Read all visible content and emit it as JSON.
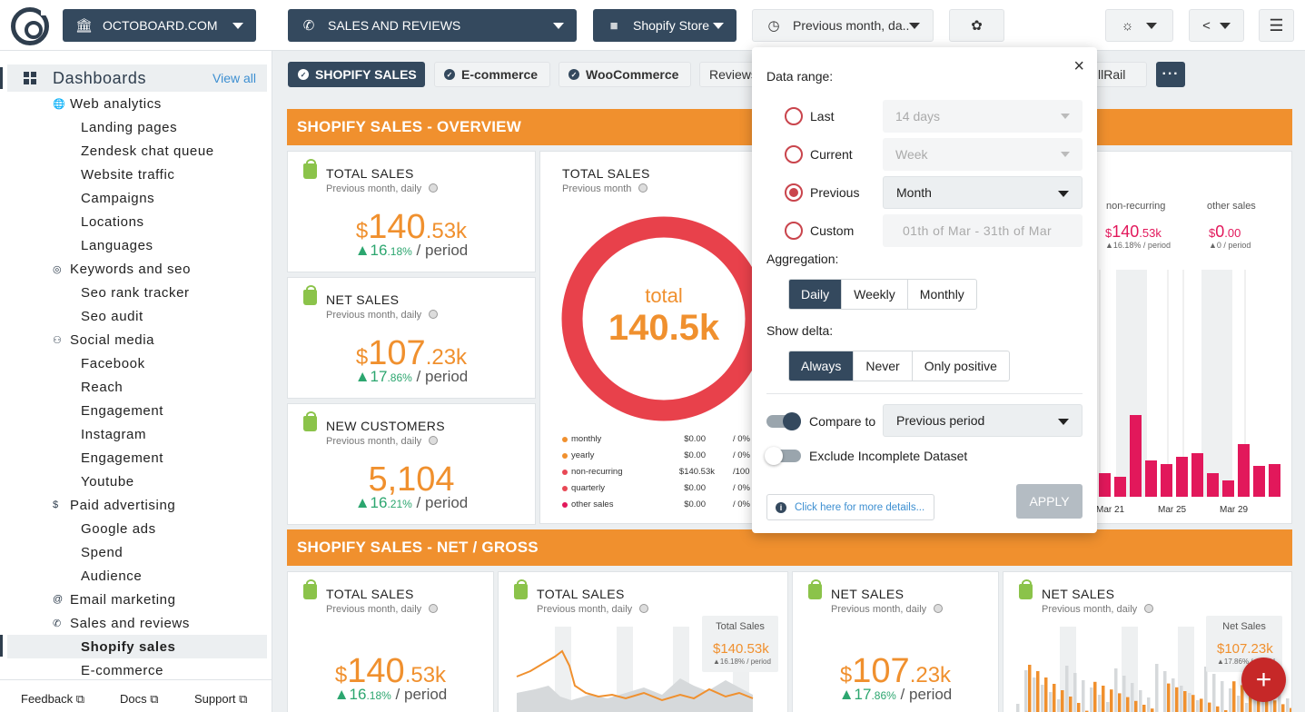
{
  "topbar": {
    "org_label": "OCTOBOARD.COM",
    "board_label": "SALES AND REVIEWS",
    "source_label": "Shopify Store",
    "period_label": "Previous month, da..."
  },
  "sidebar": {
    "header": "Dashboards",
    "view_all": "View all",
    "items": [
      {
        "label": "Web analytics",
        "level": 1,
        "icon": "globe-icon"
      },
      {
        "label": "Landing pages",
        "level": 2
      },
      {
        "label": "Zendesk chat queue",
        "level": 2
      },
      {
        "label": "Website traffic",
        "level": 2
      },
      {
        "label": "Campaigns",
        "level": 2
      },
      {
        "label": "Locations",
        "level": 2
      },
      {
        "label": "Languages",
        "level": 2
      },
      {
        "label": "Keywords and seo",
        "level": 1,
        "icon": "target-icon"
      },
      {
        "label": "Seo rank tracker",
        "level": 2
      },
      {
        "label": "Seo audit",
        "level": 2
      },
      {
        "label": "Social media",
        "level": 1,
        "icon": "people-icon"
      },
      {
        "label": "Facebook",
        "level": 2
      },
      {
        "label": "Reach",
        "level": 2
      },
      {
        "label": "Engagement",
        "level": 2
      },
      {
        "label": "Instagram",
        "level": 2
      },
      {
        "label": "Engagement",
        "level": 2
      },
      {
        "label": "Youtube",
        "level": 2
      },
      {
        "label": "Paid advertising",
        "level": 1,
        "icon": "dollar-icon"
      },
      {
        "label": "Google ads",
        "level": 2
      },
      {
        "label": "Spend",
        "level": 2
      },
      {
        "label": "Audience",
        "level": 2
      },
      {
        "label": "Email marketing",
        "level": 1,
        "icon": "at-icon"
      },
      {
        "label": "Sales and reviews",
        "level": 1,
        "icon": "phone-icon"
      },
      {
        "label": "Shopify sales",
        "level": 2,
        "active": true
      },
      {
        "label": "E-commerce",
        "level": 2
      }
    ],
    "footer": {
      "feedback": "Feedback",
      "docs": "Docs",
      "support": "Support"
    }
  },
  "tabs": [
    {
      "label": "SHOPIFY SALES",
      "active": true
    },
    {
      "label": "E-commerce"
    },
    {
      "label": "WooCommerce"
    },
    {
      "label": "Reviews"
    },
    {
      "label": "llRail"
    }
  ],
  "sections": {
    "overview": "SHOPIFY SALES - OVERVIEW",
    "net_gross": "SHOPIFY SALES - NET / GROSS"
  },
  "overview_cards": [
    {
      "title": "TOTAL SALES",
      "subtitle": "Previous month, daily",
      "currency": "$",
      "int": "140",
      "dec": ".53k",
      "delta_int": "▲16",
      "delta_dec": ".18%",
      "per": " / period"
    },
    {
      "title": "NET SALES",
      "subtitle": "Previous month, daily",
      "currency": "$",
      "int": "107",
      "dec": ".23k",
      "delta_int": "▲17",
      "delta_dec": ".86%",
      "per": " / period"
    },
    {
      "title": "NEW CUSTOMERS",
      "subtitle": "Previous month, daily",
      "currency": "",
      "int": "5,104",
      "dec": "",
      "delta_int": "▲16",
      "delta_dec": ".21%",
      "per": " / period"
    }
  ],
  "donut": {
    "title": "TOTAL SALES",
    "subtitle": "Previous month",
    "center_label": "total",
    "center_value": "140.5k",
    "legend": [
      {
        "name": "monthly",
        "value": "$0.00",
        "pct": "/  0%",
        "color": "#f0902e"
      },
      {
        "name": "yearly",
        "value": "$0.00",
        "pct": "/  0%",
        "color": "#f0902e"
      },
      {
        "name": "non-recurring",
        "value": "$140.53k",
        "pct": "/100",
        "color": "#e84855"
      },
      {
        "name": "quarterly",
        "value": "$0.00",
        "pct": "/  0%",
        "color": "#e84855"
      },
      {
        "name": "other sales",
        "value": "$0.00",
        "pct": "/  0%",
        "color": "#e2185b"
      }
    ]
  },
  "bar_card": {
    "nonrec_label": "non-recurring",
    "nonrec_cur": "$",
    "nonrec_int": "140",
    "nonrec_dec": ".53k",
    "nonrec_delta": "▲16.18% / period",
    "other_label": "other sales",
    "other_cur": "$",
    "other_int": "0",
    "other_dec": ".00",
    "other_delta": "▲0 / period",
    "x_labels": [
      "Mar 21",
      "Mar 25",
      "Mar 29"
    ],
    "bar_color": "#e2185b"
  },
  "net_cards": [
    {
      "title": "TOTAL SALES",
      "subtitle": "Previous month, daily",
      "currency": "$",
      "int": "140",
      "dec": ".53k",
      "delta_int": "▲16",
      "delta_dec": ".18%",
      "per": " / period"
    },
    {
      "title": "TOTAL SALES",
      "subtitle": "Previous month, daily",
      "legend_title": "Total Sales",
      "legend_value": "$140.53k",
      "legend_delta": "▲16.18% / period"
    },
    {
      "title": "NET SALES",
      "subtitle": "Previous month, daily",
      "currency": "$",
      "int": "107",
      "dec": ".23k",
      "delta_int": "▲17",
      "delta_dec": ".86%",
      "per": " / period"
    },
    {
      "title": "NET SALES",
      "subtitle": "Previous month, daily",
      "legend_title": "Net Sales",
      "legend_value": "$107.23k",
      "legend_delta": "▲17.86% / period"
    }
  ],
  "popup": {
    "data_range_label": "Data range:",
    "options": [
      {
        "label": "Last",
        "value": "14 days",
        "selected": false
      },
      {
        "label": "Current",
        "value": "Week",
        "selected": false
      },
      {
        "label": "Previous",
        "value": "Month",
        "selected": true
      },
      {
        "label": "Custom",
        "value": "01th of Mar - 31th of Mar",
        "selected": false
      }
    ],
    "aggregation_label": "Aggregation:",
    "aggregation": [
      "Daily",
      "Weekly",
      "Monthly"
    ],
    "aggregation_selected": "Daily",
    "delta_label": "Show delta:",
    "delta": [
      "Always",
      "Never",
      "Only positive"
    ],
    "delta_selected": "Always",
    "compare_label": "Compare to",
    "compare_value": "Previous period",
    "compare_on": true,
    "exclude_label": "Exclude Incomplete Dataset",
    "exclude_on": false,
    "details_link": "Click here for more details...",
    "apply_label": "APPLY",
    "close": "×"
  },
  "fab": "+",
  "colors": {
    "accent": "#f0902e",
    "dark": "#34495e",
    "pink": "#e2185b",
    "red": "#e84855",
    "green": "#2ca66f"
  }
}
